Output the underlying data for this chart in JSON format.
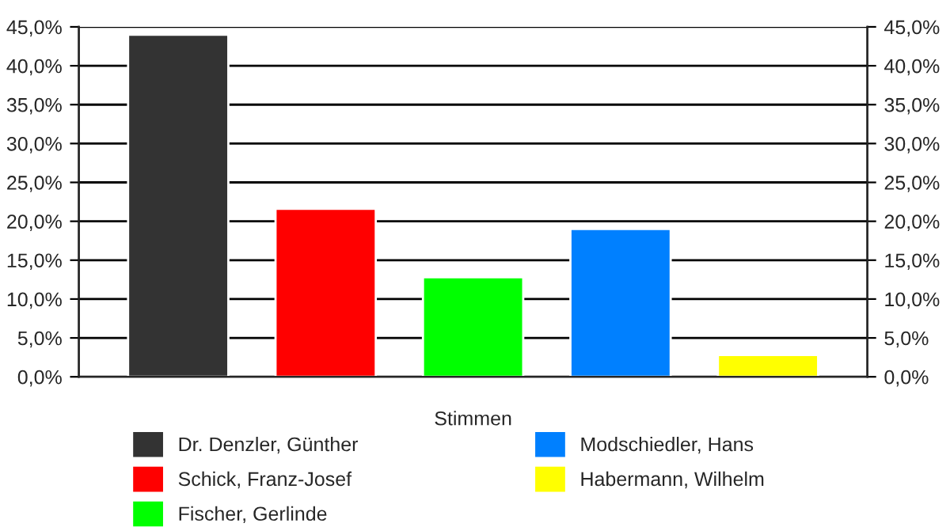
{
  "chart_data": {
    "type": "bar",
    "xlabel": "Stimmen",
    "categories": [
      null
    ],
    "series": [
      {
        "name": "Dr. Denzler, Günther",
        "color": "#333333",
        "values": [
          44.0
        ]
      },
      {
        "name": "Schick, Franz-Josef",
        "color": "#ff0000",
        "values": [
          21.6
        ]
      },
      {
        "name": "Fischer, Gerlinde",
        "color": "#00ff00",
        "values": [
          12.8
        ]
      },
      {
        "name": "Modschiedler, Hans",
        "color": "#0080ff",
        "values": [
          19.0
        ]
      },
      {
        "name": "Habermann, Wilhelm",
        "color": "#ffff00",
        "values": [
          2.8
        ]
      }
    ],
    "ylim": [
      0,
      45
    ],
    "yticks": [
      {
        "value": 0,
        "label": "0,0%"
      },
      {
        "value": 5,
        "label": "5,0%"
      },
      {
        "value": 10,
        "label": "10,0%"
      },
      {
        "value": 15,
        "label": "15,0%"
      },
      {
        "value": 20,
        "label": "20,0%"
      },
      {
        "value": 25,
        "label": "25,0%"
      },
      {
        "value": 30,
        "label": "30,0%"
      },
      {
        "value": 35,
        "label": "35,0%"
      },
      {
        "value": 40,
        "label": "40,0%"
      },
      {
        "value": 45,
        "label": "45,0%"
      }
    ],
    "y2lim": [
      0,
      45
    ],
    "y2ticks": [
      {
        "value": 0,
        "label": "0,0%"
      },
      {
        "value": 5,
        "label": "5,0%"
      },
      {
        "value": 10,
        "label": "10,0%"
      },
      {
        "value": 15,
        "label": "15,0%"
      },
      {
        "value": 20,
        "label": "20,0%"
      },
      {
        "value": 25,
        "label": "25,0%"
      },
      {
        "value": 30,
        "label": "30,0%"
      },
      {
        "value": 35,
        "label": "35,0%"
      },
      {
        "value": 40,
        "label": "40,0%"
      },
      {
        "value": 45,
        "label": "45,0%"
      }
    ],
    "grid": "y",
    "legend": "bottom"
  }
}
